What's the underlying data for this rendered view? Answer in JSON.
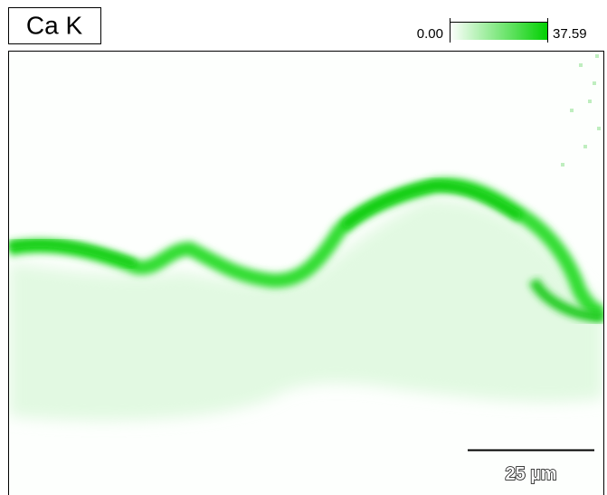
{
  "label": "Ca K",
  "colorbar": {
    "min": "0.00",
    "max": "37.59"
  },
  "scale_bar": {
    "label": "25 µm"
  }
}
